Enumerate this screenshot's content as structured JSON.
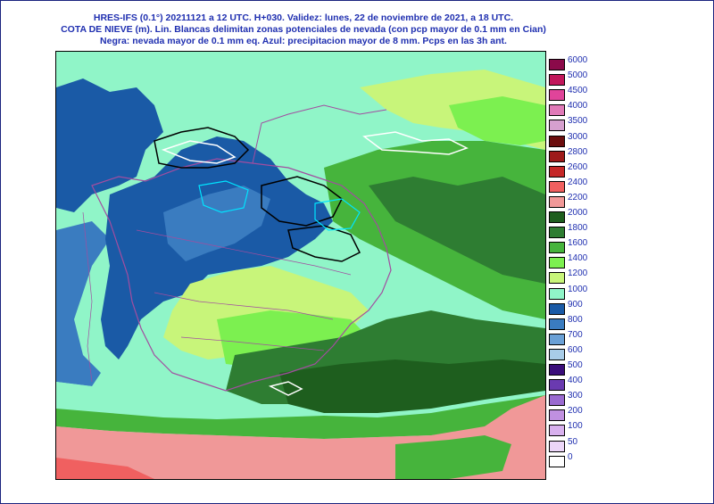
{
  "header": {
    "line1": "HRES-IFS (0.1°) 20211121 a 12 UTC.  H+030. Validez: lunes, 22 de noviembre de 2021,  a  18 UTC.",
    "line2": "COTA DE NIEVE (m). Lin. Blancas delimitan zonas potenciales de nevada (con pcp mayor de 0.1 mm en Cian)",
    "line3": "Negra: nevada mayor de 0.1 mm eq. Azul: precipitacion mayor de 8 mm. Pcps en las 3h ant."
  },
  "legend": [
    {
      "label": "6000",
      "color": "#8b0a4a"
    },
    {
      "label": "5000",
      "color": "#c2185b"
    },
    {
      "label": "4500",
      "color": "#e0449a"
    },
    {
      "label": "4000",
      "color": "#e07ab8"
    },
    {
      "label": "3500",
      "color": "#d6a0cf"
    },
    {
      "label": "3000",
      "color": "#6b0d0d"
    },
    {
      "label": "2800",
      "color": "#9e1b1b"
    },
    {
      "label": "2600",
      "color": "#c62828"
    },
    {
      "label": "2400",
      "color": "#f06060"
    },
    {
      "label": "2200",
      "color": "#f09898"
    },
    {
      "label": "2000",
      "color": "#1e5e1e"
    },
    {
      "label": "1800",
      "color": "#2e7d32"
    },
    {
      "label": "1600",
      "color": "#46b43c"
    },
    {
      "label": "1400",
      "color": "#7cf050"
    },
    {
      "label": "1200",
      "color": "#c8f57a"
    },
    {
      "label": "1000",
      "color": "#90f5c8"
    },
    {
      "label": "900",
      "color": "#1a5aa6"
    },
    {
      "label": "800",
      "color": "#3a7cc0"
    },
    {
      "label": "700",
      "color": "#6aa0d6"
    },
    {
      "label": "600",
      "color": "#a8cce8"
    },
    {
      "label": "500",
      "color": "#3a0d7a"
    },
    {
      "label": "400",
      "color": "#6a3ab0"
    },
    {
      "label": "300",
      "color": "#9a6ad0"
    },
    {
      "label": "200",
      "color": "#c090e0"
    },
    {
      "label": "100",
      "color": "#d8b0ee"
    },
    {
      "label": "50",
      "color": "#ecd6f8"
    },
    {
      "label": "0",
      "color": "#ffffff"
    }
  ],
  "colors": {
    "header_text": "#1f2fb0",
    "sea_low": "#1a5aa6",
    "coast_band": "#90f5c8",
    "north_africa": "#f09898",
    "borders": "#a24da0"
  }
}
